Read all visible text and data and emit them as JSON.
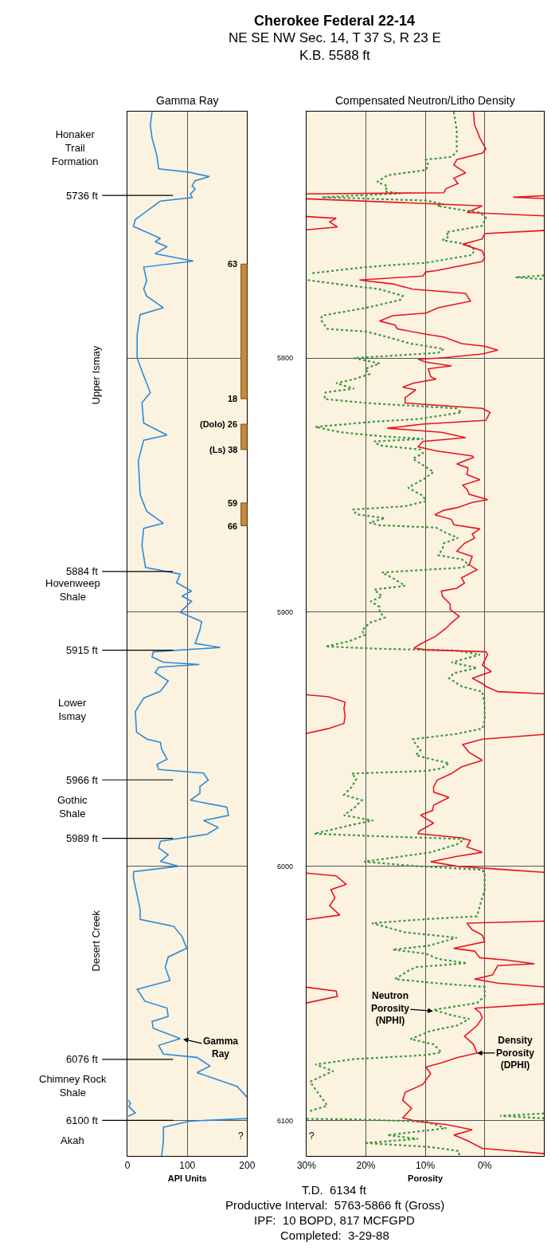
{
  "chart_data": [
    {
      "type": "other",
      "title": "Cherokee Federal 22-14",
      "subtitle": "NE SE NW Sec. 14, T 37 S, R 23 E\nK.B. 5588 ft"
    },
    {
      "type": "line",
      "title": "Gamma Ray",
      "xlabel": "API Units",
      "xlim": [
        0,
        200
      ],
      "xticks": [
        0,
        100,
        200
      ],
      "ylim": [
        6114,
        5703
      ],
      "yticks": [
        {
          "value": 5800,
          "label": null
        },
        {
          "value": 5900,
          "label": null
        },
        {
          "value": 6000,
          "label": null
        },
        {
          "value": 6100,
          "label": null
        }
      ],
      "tick_labels": "x",
      "grid": true,
      "line_style": "solid",
      "series": [
        {
          "color": "#2a8bd8",
          "x": [
            41,
            38,
            41,
            49,
            52,
            102,
            137,
            113,
            108,
            113,
            105,
            108,
            55,
            13,
            10,
            55,
            46,
            66,
            46,
            110,
            27,
            32,
            27,
            32,
            60,
            21,
            16,
            16,
            27,
            38,
            24,
            27,
            66,
            27,
            18,
            21,
            32,
            60,
            27,
            24,
            30,
            88,
            82,
            107,
            91,
            107,
            88,
            124,
            121,
            113,
            155,
            43,
            41,
            60,
            120,
            52,
            46,
            68,
            55,
            27,
            13,
            15,
            32,
            55,
            57,
            66,
            49,
            52,
            127,
            135,
            121,
            121,
            105,
            166,
            169,
            127,
            152,
            133,
            55,
            52,
            68,
            55,
            85,
            10,
            10,
            21,
            21,
            77,
            91,
            99,
            68,
            63,
            71,
            16,
            29,
            66,
            68,
            41,
            43,
            88,
            52,
            60,
            116,
            138,
            116,
            183,
            200,
            null,
            1,
            5,
            2,
            13,
            1,
            null,
            200,
            105,
            60,
            60,
            57
          ],
          "values": [
            5703.1,
            5708.1,
            5713.5,
            5720.2,
            5725.5,
            5726.8,
            5728.6,
            5730.2,
            5732.2,
            5733.5,
            5735.5,
            5736.8,
            5738.2,
            5745.5,
            5748.2,
            5752.9,
            5754.2,
            5756.2,
            5758.9,
            5761.8,
            5764.2,
            5769.6,
            5772.9,
            5775.6,
            5780.2,
            5782.9,
            5790.9,
            5800,
            5806.9,
            5813.6,
            5817.6,
            5825.6,
            5830.3,
            5832.3,
            5840.3,
            5853.7,
            5860.3,
            5865,
            5867,
            5873.7,
            5882.4,
            5885,
            5888.4,
            5891.7,
            5893.7,
            5895.7,
            5900,
            5903.7,
            5907,
            5912.3,
            5913.9,
            5915.6,
            5917.7,
            5919.7,
            5920.6,
            5921.7,
            5923.7,
            5927.1,
            5931.1,
            5933.8,
            5939.1,
            5947.2,
            5949.9,
            5951.2,
            5953.9,
            5957.9,
            5959.9,
            5961.9,
            5963.3,
            5966,
            5968.6,
            5971.3,
            5974,
            5976.7,
            5980,
            5982,
            5984.7,
            5987.4,
            5990.1,
            5992.8,
            5995.4,
            5998.1,
            6000,
            6002.1,
            6004.8,
            6016.9,
            6020.9,
            6023.6,
            6027.6,
            6032.3,
            6035.7,
            6039.7,
            6045,
            6048.4,
            6053.1,
            6055.8,
            6059.1,
            6061.1,
            6063.8,
            6067.8,
            6070.5,
            6073.9,
            6075.2,
            6078.6,
            6081.2,
            6086.6,
            6090.9,
            null,
            6092,
            6093.3,
            6094.6,
            6097.1,
            6098.4,
            null,
            6099.3,
            6100.3,
            6102.7,
            6108,
            6114
          ]
        }
      ],
      "ref_lines": [
        {
          "axis": "y",
          "value": 5736,
          "label": "5736 ft"
        },
        {
          "axis": "y",
          "value": 5884,
          "label": "5884 ft"
        },
        {
          "axis": "y",
          "value": 5915,
          "label": "5915 ft"
        },
        {
          "axis": "y",
          "value": 5966,
          "label": "5966 ft"
        },
        {
          "axis": "y",
          "value": 5989,
          "label": "5989 ft"
        },
        {
          "axis": "y",
          "value": 6076,
          "label": "6076 ft"
        },
        {
          "axis": "y",
          "value": 6100,
          "label": "6100 ft"
        }
      ],
      "bands": [
        {
          "axis": "y",
          "from": 5763,
          "to": 5816,
          "label": "63\n18",
          "color": "#c98a3c"
        },
        {
          "axis": "y",
          "from": 5826,
          "to": 5836,
          "label": "(Dolo) 26\n(Ls) 38",
          "color": "#c98a3c"
        },
        {
          "axis": "y",
          "from": 5857,
          "to": 5866,
          "label": "59\n66",
          "color": "#c98a3c"
        }
      ],
      "annotations": [
        "Honaker\nTrail\nFormation",
        "Upper Ismay",
        "Hovenweep\nShale",
        "Lower\nIsmay",
        "Gothic\nShale",
        "Desert Creek",
        "Chimney Rock\nShale",
        "Akah",
        {
          "text": "Gamma\nRay",
          "x": 93,
          "y": 6068
        },
        "?"
      ]
    },
    {
      "type": "line",
      "title": "Compensated Neutron/Litho Density",
      "xlabel": "Porosity",
      "xlim": [
        30,
        -10
      ],
      "xticks": [
        {
          "value": 30,
          "label": "30%"
        },
        {
          "value": 20,
          "label": "20%"
        },
        {
          "value": 10,
          "label": "10%"
        },
        {
          "value": 0,
          "label": "0%"
        }
      ],
      "ylim": [
        6114,
        5703
      ],
      "yticks": [
        5800,
        5900,
        6000,
        6100
      ],
      "grid": true,
      "line_style": "solid",
      "series": [
        {
          "color": "#3a9a3e",
          "line_style": "dotted",
          "x": [
            5.2,
            4.7,
            4.7,
            5.6,
            9.9,
            9.5,
            9.9,
            13.4,
            16.4,
            18.1,
            16.4,
            16.8,
            14.2,
            27.4,
            9.9,
            6.9,
            8,
            3.9,
            0.8,
            -0.2,
            0.4,
            6.5,
            6,
            7.1,
            3,
            1.7,
            2.1,
            9.9,
            16.4,
            21.6,
            29.4,
            null,
            -10,
            -5.2,
            -10,
            null,
            29.8,
            25,
            17.7,
            13.8,
            14.2,
            19.9,
            27.4,
            27.6,
            26.5,
            19.9,
            16.4,
            12.5,
            6.9,
            7.8,
            11.2,
            22,
            17.7,
            20.1,
            19.4,
            22,
            25,
            22,
            26.8,
            27,
            19.9,
            4.7,
            3.9,
            11.2,
            18.6,
            28.5,
            24.2,
            17.7,
            10.4,
            18.6,
            17.7,
            10.8,
            10.4,
            12.1,
            8.6,
            10.1,
            12.9,
            10.4,
            9.9,
            13.4,
            22.2,
            21.6,
            16.8,
            19.4,
            17.7,
            8.2,
            6.5,
            4.5,
            6.9,
            7.1,
            7.8,
            3.9,
            2.6,
            3.9,
            9.9,
            17.3,
            15.5,
            13.4,
            18.6,
            17.3,
            19.2,
            17.7,
            17.7,
            16.8,
            19.4,
            20.7,
            20.1,
            22.9,
            26.8,
            17.7,
            4.7,
            0.8,
            5.6,
            1.3,
            5.2,
            6,
            3.9,
            0.4,
            0,
            0,
            0.4,
            4.7,
            12.1,
            11.6,
            10.8,
            11.6,
            8.2,
            6,
            7.3,
            9.9,
            22.4,
            21.6,
            22.4,
            23.7,
            20.7,
            22,
            23.7,
            18.8,
            22,
            28.7,
            17.7,
            3.4,
            4.7,
            9.1,
            20.3,
            11.2,
            0.4,
            0,
            0,
            0.8,
            1.3,
            9.9,
            19,
            13.4,
            4.7,
            9.5,
            15.5,
            9.9,
            7.8,
            3,
            11.6,
            12.9,
            15.1,
            8.2,
            0,
            0,
            1.3,
            8.6,
            5.6,
            2.6,
            4.7,
            9.1,
            12.5,
            8.6,
            7.3,
            9.9,
            22,
            28.5,
            25.5,
            29.4,
            28.1,
            26.5,
            29.4,
            null,
            -10,
            -2.6,
            -10,
            null,
            30,
            22,
            9.9,
            6.5,
            16.4,
            11.2,
            20.3,
            9.1,
            4.3,
            4.3
          ],
          "values": [
            5703.1,
            5710.4,
            5718.8,
            5720.8,
            5721.9,
            5724,
            5726,
            5727.1,
            5728.1,
            5730.7,
            5732.3,
            5734.4,
            5735.2,
            5736.7,
            5738,
            5739.4,
            5740.1,
            5741.7,
            5742.7,
            5744.8,
            5747.9,
            5750.5,
            5752.1,
            5753.6,
            5755.2,
            5757.3,
            5759.4,
            5762.5,
            5763.5,
            5764.6,
            5766.7,
            null,
            5767.5,
            5768.2,
            5769,
            null,
            5769.3,
            5770.8,
            5772.9,
            5775.5,
            5777.1,
            5780.2,
            5783.3,
            5784.9,
            5788.5,
            5789.6,
            5791.7,
            5794.3,
            5796.4,
            5797.9,
            5798.4,
            5800,
            5802.1,
            5804.2,
            5806.3,
            5808.3,
            5809.9,
            5812,
            5813.5,
            5816.1,
            5817.7,
            5819.8,
            5821.4,
            5824,
            5825,
            5827.1,
            5829.2,
            5830.7,
            5831.8,
            5832.8,
            5834.4,
            5836,
            5837.5,
            5839.6,
            5844.8,
            5847.4,
            5851,
            5854.2,
            5856.3,
            5858.3,
            5859.6,
            5861.5,
            5863,
            5864.8,
            5865.8,
            5866.7,
            5868.8,
            5870.8,
            5872.9,
            5875,
            5877.6,
            5879.2,
            5881.3,
            5882.5,
            5883.3,
            5884.4,
            5886.5,
            5889.6,
            5891.1,
            5893.8,
            5895.8,
            5897.9,
            5900,
            5902.1,
            5904.2,
            5907.3,
            5908.9,
            5911.5,
            5913.5,
            5914.4,
            5915.1,
            5916.7,
            5919.8,
            5921.9,
            5924,
            5926,
            5929.2,
            5931.3,
            5936.5,
            5942.7,
            5945.8,
            5947.9,
            5950,
            5952.1,
            5954.2,
            5956.3,
            5958.3,
            5959.4,
            5961.5,
            5962.5,
            5963.5,
            5965.6,
            5968.8,
            5971.9,
            5974,
            5977.1,
            5979.9,
            5982,
            5983.5,
            5987.2,
            5988.2,
            5989.3,
            5991.4,
            5994.5,
            5998.2,
            6000,
            6001.4,
            6002.9,
            6009.2,
            6015.5,
            6019.7,
            6020.8,
            6022.4,
            6026,
            6028.1,
            6031.3,
            6032.8,
            6034.4,
            6036.5,
            6038.1,
            6039.7,
            6041.2,
            6044.4,
            6046,
            6047.5,
            6051.2,
            6053.8,
            6056.5,
            6058.6,
            6060.1,
            6062.7,
            6064.8,
            6068,
            6070.1,
            6073.2,
            6074.3,
            6075.9,
            6078,
            6080.6,
            6084.8,
            6089,
            6094.2,
            6096.3,
            null,
            6097.3,
            6098.2,
            6099.2,
            null,
            6099.4,
            6099.6,
            6100.5,
            6103.1,
            6105.8,
            6107.3,
            6108.9,
            6110.5,
            6112.1,
            6114
          ]
        },
        {
          "color": "#e8161e",
          "x": [
            1.9,
            1.7,
            1.3,
            0.8,
            -0.2,
            0.4,
            4.7,
            5.2,
            3.2,
            5.2,
            4.5,
            6.5,
            6.9,
            30,
            null,
            -10,
            -4.8,
            -10,
            null,
            30,
            0.4,
            3,
            -10,
            null,
            30,
            25,
            26.1,
            24.8,
            30,
            null,
            -10,
            0,
            0.4,
            3.7,
            0.4,
            0,
            0.4,
            8.2,
            9.9,
            10.4,
            21.1,
            15.5,
            12.1,
            3.2,
            2.4,
            7.8,
            9.9,
            15.5,
            17.7,
            15.1,
            14.7,
            9.9,
            6.9,
            3.9,
            0,
            -2.2,
            0.4,
            6.5,
            11.2,
            9.9,
            5.6,
            9.5,
            9.1,
            8.2,
            12.1,
            13.8,
            11.6,
            13.4,
            13.4,
            0.4,
            -0.9,
            -0.2,
            10.4,
            16.4,
            7.3,
            3.2,
            10.4,
            11.2,
            8.2,
            2.1,
            1.9,
            4.7,
            2.8,
            3,
            0.8,
            3.7,
            3,
            2.6,
            -0.5,
            2.1,
            4.7,
            6.9,
            8.4,
            5.6,
            5.2,
            0.8,
            2.1,
            1.7,
            3.4,
            4.7,
            2.1,
            2.6,
            1.3,
            3.9,
            3.4,
            4.7,
            7.3,
            7.1,
            5.8,
            5.8,
            4.3,
            5.6,
            6.5,
            8.2,
            10.8,
            11.9,
            9.9,
            -0.2,
            -0.5,
            0.4,
            -1.1,
            2.1,
            0.4,
            -0.2,
            -2.2,
            -10,
            null,
            30,
            26.3,
            23.5,
            23.7,
            23.5,
            23.7,
            26.3,
            30,
            null,
            -10,
            0.4,
            3.7,
            2.6,
            0.4,
            3.9,
            5.6,
            8,
            8.6,
            8.6,
            6,
            8.6,
            8.8,
            10.8,
            8.6,
            11,
            11.2,
            3.9,
            2.4,
            3,
            0.4,
            4.7,
            9.1,
            4.7,
            -3.9,
            -10,
            null,
            30,
            25,
            23.3,
            25.9,
            25.2,
            26.1,
            24.4,
            30,
            null,
            -10,
            3,
            2.1,
            0.4,
            0,
            5.2,
            1.7,
            0.8,
            -3.9,
            -8.4,
            -2.2,
            -1.3,
            1.7,
            -2.2,
            -10,
            null,
            30,
            25,
            24.8,
            30,
            null,
            -10,
            1.7,
            0.8,
            0.4,
            1.3,
            3.4,
            1.9,
            1.3,
            4.7,
            7.3,
            9.9,
            9.1,
            10.4,
            13.4,
            13.8,
            12.3,
            13.8,
            11.2,
            6.5,
            2.1,
            5.2,
            3,
            0.4,
            -10
          ],
          "values": [
            5703.1,
            5708.3,
            5710.4,
            5713.5,
            5717.7,
            5719.3,
            5721.9,
            5724,
            5727.1,
            5729.2,
            5731.3,
            5733.3,
            5734.9,
            5735.4,
            null,
            5736.1,
            5736.7,
            5737.2,
            null,
            5737.3,
            5740.1,
            5742.7,
            5744,
            null,
            5744.3,
            5745,
            5746.4,
            5748.4,
            5749.5,
            null,
            5749.8,
            5751,
            5753.1,
            5755.2,
            5757.8,
            5760.4,
            5762,
            5765.6,
            5766.1,
            5767.7,
            5769.3,
            5770.8,
            5772.9,
            5774.5,
            5777.6,
            5780.2,
            5782.3,
            5783.3,
            5785.4,
            5787,
            5788.5,
            5790.6,
            5791.7,
            5794.3,
            5795.3,
            5796.9,
            5798.4,
            5799.8,
            5800.5,
            5801.6,
            5803.1,
            5804.2,
            5807.3,
            5808.3,
            5809.9,
            5811.5,
            5812.5,
            5815.6,
            5817.7,
            5819.8,
            5821.4,
            5824.5,
            5826,
            5827.6,
            5829.2,
            5831.3,
            5832.8,
            5834.9,
            5836.5,
            5838.5,
            5839.1,
            5841.7,
            5843.2,
            5845.8,
            5847.9,
            5850,
            5851.6,
            5853.6,
            5855.7,
            5856.8,
            5858.9,
            5859.9,
            5861.7,
            5863.5,
            5865.6,
            5867.2,
            5869.3,
            5870.8,
            5872.9,
            5876,
            5878.1,
            5881.3,
            5883.3,
            5886.5,
            5888.5,
            5890.6,
            5891.7,
            5893.8,
            5896.9,
            5899,
            5901.6,
            5904.2,
            5906.3,
            5909.4,
            5912.5,
            5914.1,
            5914.8,
            5915.6,
            5916.7,
            5920.8,
            5923.4,
            5926,
            5928.1,
            5929.2,
            5931.3,
            5932.1,
            null,
            5932.5,
            5933.3,
            5935.4,
            5938,
            5940.6,
            5943.8,
            5945.8,
            5947.7,
            null,
            5948.1,
            5950,
            5952.1,
            5955.2,
            5958.3,
            5960.9,
            5963.5,
            5966.1,
            5968.8,
            5970.8,
            5972.9,
            5976,
            5978.1,
            5979.9,
            5983,
            5986.1,
            5987.2,
            5988.8,
            5989.8,
            5992.4,
            5994.5,
            5996.1,
            5998.2,
            6000,
            6001.4,
            6002.4,
            null,
            6002.7,
            6003.8,
            6007.1,
            6009.2,
            6012.4,
            6015.5,
            6019.2,
            6021,
            null,
            6021.6,
            6022.4,
            6025,
            6027.1,
            6029.7,
            6032.3,
            6033.4,
            6036,
            6037,
            6038.4,
            6039.1,
            6042.8,
            6044.4,
            6046,
            6047.5,
            null,
            6047.6,
            6049.1,
            6051.2,
            6053.8,
            null,
            6054.1,
            6055.9,
            6057.5,
            6059.6,
            6062.7,
            6066.9,
            6070.1,
            6073.5,
            6075.3,
            6077.4,
            6079,
            6081.6,
            6085.8,
            6089,
            6092.1,
            6095.3,
            6099,
            6100.5,
            6101.6,
            6103.7,
            6105.8,
            6107.9,
            6111,
            6113.1
          ]
        }
      ],
      "annotations": [
        {
          "text": "Neutron\nPorosity\n(NPHI)",
          "x": 8.7,
          "y": 6057
        },
        {
          "text": "Density\nPorosity\n(DPHI)",
          "x": 1.3,
          "y": 6073.5
        },
        "?"
      ]
    },
    {
      "type": "other",
      "annotations": [
        "T.D.  6134 ft",
        "Productive Interval:  5763-5866 ft (Gross)",
        "IPF:  10 BOPD, 817 MCFGPD",
        "Completed:  3-29-88"
      ]
    }
  ]
}
